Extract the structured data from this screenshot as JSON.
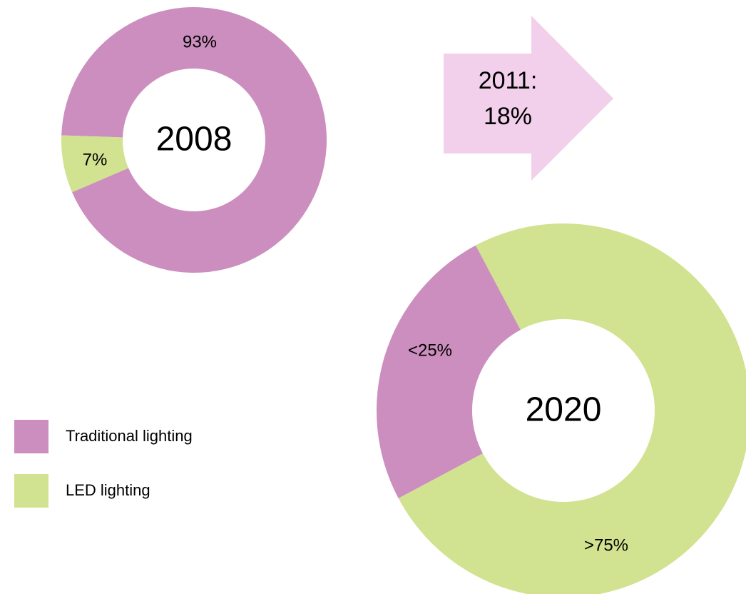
{
  "chart_data": [
    {
      "type": "donut",
      "center_label": "2008",
      "categories": [
        "Traditional lighting",
        "LED lighting"
      ],
      "values": [
        93,
        7
      ],
      "value_labels": [
        "93%",
        "7%"
      ],
      "colors": [
        "#cc8ebe",
        "#d1e291"
      ]
    },
    {
      "type": "donut",
      "center_label": "2020",
      "categories": [
        "Traditional lighting",
        "LED lighting"
      ],
      "values": [
        25,
        75
      ],
      "value_labels": [
        "<25%",
        ">75%"
      ],
      "colors": [
        "#cc8ebe",
        "#d1e291"
      ]
    }
  ],
  "arrow_label": [
    "2011:",
    "18%"
  ]
}
